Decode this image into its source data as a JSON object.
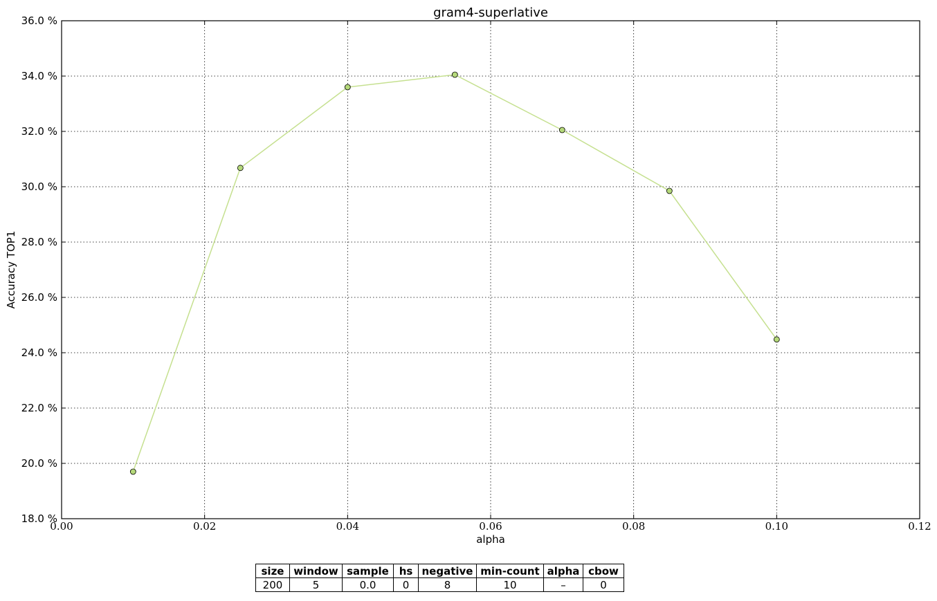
{
  "chart_data": {
    "type": "line",
    "title": "gram4-superlative",
    "xlabel": "alpha",
    "ylabel": "Accuracy TOP1",
    "xlim": [
      0.0,
      0.12
    ],
    "ylim": [
      18.0,
      36.0
    ],
    "x_ticks": [
      "0.00",
      "0.02",
      "0.04",
      "0.06",
      "0.08",
      "0.10",
      "0.12"
    ],
    "y_ticks": [
      "18.0 %",
      "20.0 %",
      "22.0 %",
      "24.0 %",
      "26.0 %",
      "28.0 %",
      "30.0 %",
      "32.0 %",
      "34.0 %",
      "36.0 %"
    ],
    "grid": true,
    "line_color": "#c5e08f",
    "marker_color": "#b5d97a",
    "series": [
      {
        "x": [
          0.01,
          0.025,
          0.04,
          0.055,
          0.07,
          0.085,
          0.1
        ],
        "y": [
          19.7,
          30.68,
          33.6,
          34.05,
          32.05,
          29.85,
          24.48
        ]
      }
    ]
  },
  "params_table": {
    "headers": [
      "size",
      "window",
      "sample",
      "hs",
      "negative",
      "min-count",
      "alpha",
      "cbow"
    ],
    "values": [
      "200",
      "5",
      "0.0",
      "0",
      "8",
      "10",
      "–",
      "0"
    ]
  }
}
